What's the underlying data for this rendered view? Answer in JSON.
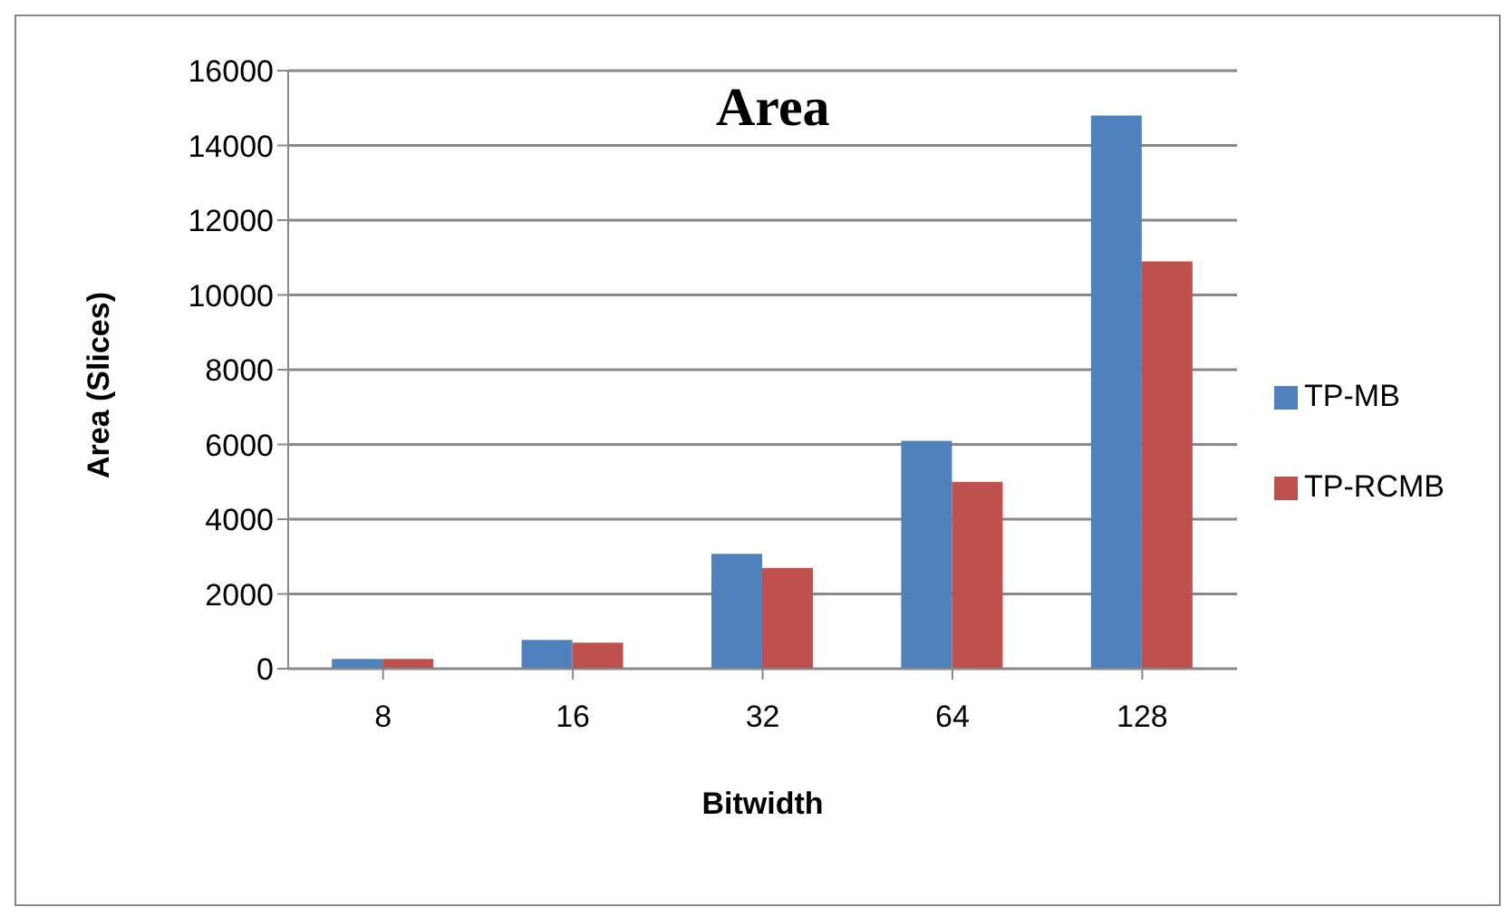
{
  "chart_data": {
    "type": "bar",
    "title": "Area",
    "xlabel": "Bitwidth",
    "ylabel": "Area (Slices)",
    "categories": [
      "8",
      "16",
      "32",
      "64",
      "128"
    ],
    "series": [
      {
        "name": "TP-MB",
        "color": "#4f81bd",
        "values": [
          260,
          770,
          3070,
          6100,
          14800
        ]
      },
      {
        "name": "TP-RCMB",
        "color": "#c0504d",
        "values": [
          260,
          700,
          2700,
          5000,
          10900
        ]
      }
    ],
    "ylim": [
      0,
      16000
    ],
    "yticks": [
      0,
      2000,
      4000,
      6000,
      8000,
      10000,
      12000,
      14000,
      16000
    ],
    "grid": "y",
    "legend": "right"
  }
}
